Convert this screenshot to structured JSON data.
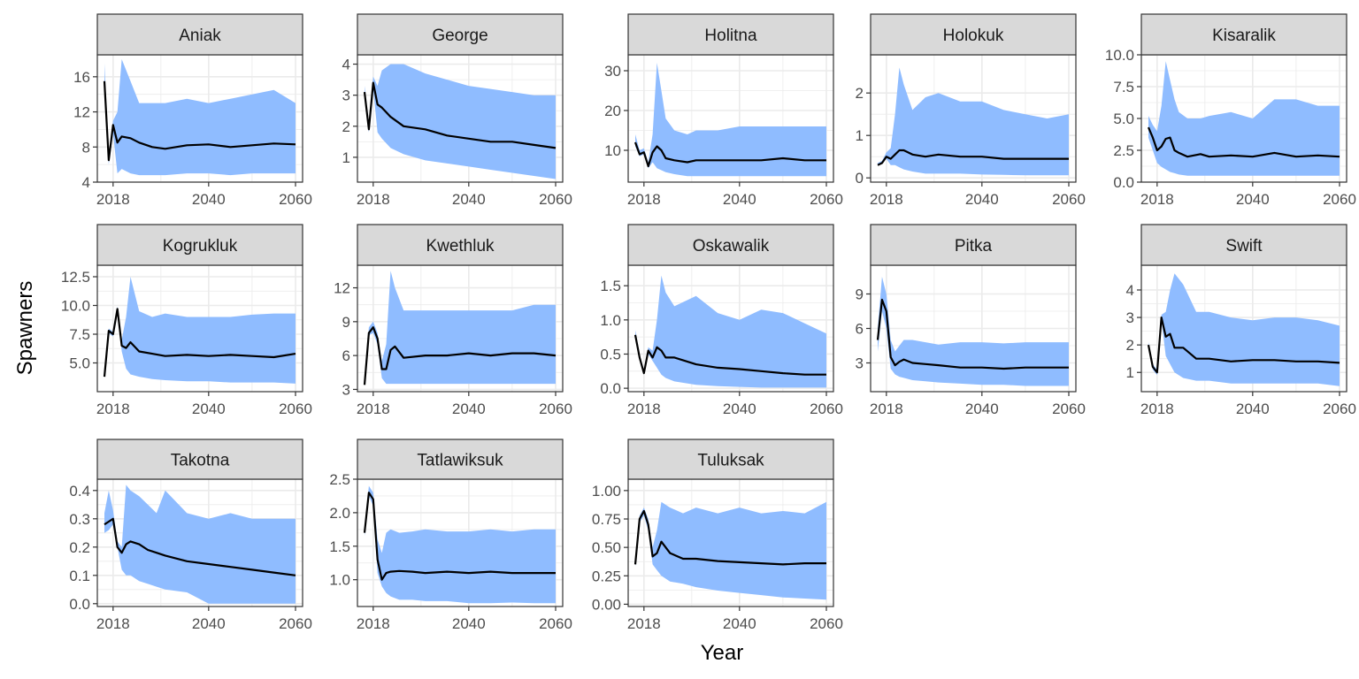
{
  "chart_data": {
    "type": "area",
    "layout": "faceted ribbon + median line, 3 rows x 5 columns, free y scales",
    "xlabel": "Year",
    "ylabel": "Spawners",
    "colors": {
      "ribbon": "#8fbcff",
      "line": "#000000",
      "strip": "#d9d9d9",
      "grid": "#ebebeb"
    },
    "x_ticks": [
      2018,
      2040,
      2060
    ],
    "xlim": [
      2016,
      2060
    ],
    "panels": [
      {
        "name": "Aniak",
        "ylim": [
          4,
          18.5
        ],
        "y_ticks": [
          4,
          8,
          12,
          16
        ],
        "x": [
          2016,
          2017,
          2018,
          2019,
          2020,
          2022,
          2024,
          2027,
          2030,
          2035,
          2040,
          2045,
          2050,
          2055,
          2060
        ],
        "median": [
          15.5,
          6.5,
          10.5,
          8.5,
          9.2,
          9.0,
          8.5,
          8.0,
          7.8,
          8.2,
          8.3,
          8.0,
          8.2,
          8.4,
          8.3
        ],
        "lower": [
          15.0,
          6.0,
          9.5,
          5.0,
          5.5,
          5.0,
          4.8,
          4.8,
          4.8,
          5.0,
          5.0,
          4.8,
          5.0,
          5.0,
          5.0
        ],
        "upper": [
          17.5,
          7.0,
          11.0,
          12.0,
          18.0,
          15.5,
          13.0,
          13.0,
          13.0,
          13.5,
          13.0,
          13.5,
          14.0,
          14.5,
          13.0
        ]
      },
      {
        "name": "George",
        "ylim": [
          0.2,
          4.3
        ],
        "y_ticks": [
          1,
          2,
          3,
          4
        ],
        "x": [
          2016,
          2017,
          2018,
          2019,
          2020,
          2022,
          2025,
          2030,
          2035,
          2040,
          2045,
          2050,
          2055,
          2060
        ],
        "median": [
          3.1,
          1.9,
          3.4,
          2.7,
          2.6,
          2.3,
          2.0,
          1.9,
          1.7,
          1.6,
          1.5,
          1.5,
          1.4,
          1.3
        ],
        "lower": [
          3.0,
          1.8,
          3.2,
          1.8,
          1.6,
          1.3,
          1.1,
          0.9,
          0.8,
          0.7,
          0.6,
          0.5,
          0.4,
          0.3
        ],
        "upper": [
          3.3,
          2.1,
          3.6,
          3.3,
          3.8,
          4.0,
          4.0,
          3.7,
          3.5,
          3.3,
          3.2,
          3.1,
          3.0,
          3.0
        ]
      },
      {
        "name": "Holitna",
        "ylim": [
          2,
          34
        ],
        "y_ticks": [
          10,
          20,
          30
        ],
        "x": [
          2016,
          2017,
          2018,
          2019,
          2020,
          2021,
          2022,
          2023,
          2025,
          2028,
          2030,
          2035,
          2040,
          2045,
          2050,
          2055,
          2060
        ],
        "median": [
          12,
          9,
          9.5,
          6.0,
          9.5,
          11,
          10,
          8.0,
          7.5,
          7.0,
          7.5,
          7.5,
          7.5,
          7.5,
          8.0,
          7.5,
          7.5
        ],
        "lower": [
          11,
          8.5,
          9.0,
          5.5,
          7.0,
          5.5,
          5.0,
          4.5,
          4.0,
          3.5,
          3.5,
          3.5,
          3.5,
          3.5,
          3.5,
          3.5,
          3.5
        ],
        "upper": [
          14,
          10,
          10.5,
          7.0,
          14,
          32,
          25,
          18,
          15,
          14,
          15,
          15,
          16,
          16,
          16,
          16,
          16
        ]
      },
      {
        "name": "Holokuk",
        "ylim": [
          -0.1,
          2.9
        ],
        "y_ticks": [
          0,
          1,
          2
        ],
        "x": [
          2016,
          2017,
          2018,
          2019,
          2020,
          2021,
          2022,
          2024,
          2027,
          2030,
          2035,
          2040,
          2045,
          2050,
          2055,
          2060
        ],
        "median": [
          0.3,
          0.35,
          0.5,
          0.45,
          0.55,
          0.65,
          0.65,
          0.55,
          0.5,
          0.55,
          0.5,
          0.5,
          0.45,
          0.45,
          0.45,
          0.45
        ],
        "lower": [
          0.3,
          0.33,
          0.45,
          0.3,
          0.3,
          0.25,
          0.2,
          0.15,
          0.1,
          0.1,
          0.1,
          0.08,
          0.07,
          0.06,
          0.06,
          0.06
        ],
        "upper": [
          0.35,
          0.4,
          0.6,
          0.7,
          1.5,
          2.6,
          2.2,
          1.6,
          1.9,
          2.0,
          1.8,
          1.8,
          1.6,
          1.5,
          1.4,
          1.5
        ]
      },
      {
        "name": "Kisaralik",
        "ylim": [
          0,
          10
        ],
        "y_ticks": [
          0.0,
          2.5,
          5.0,
          7.5,
          10.0
        ],
        "y_tick_labels": [
          "0.0",
          "2.5",
          "5.0",
          "7.5",
          "10.0"
        ],
        "x": [
          2016,
          2017,
          2018,
          2019,
          2020,
          2021,
          2022,
          2023,
          2025,
          2028,
          2030,
          2035,
          2040,
          2045,
          2050,
          2055,
          2060
        ],
        "median": [
          4.3,
          3.5,
          2.5,
          2.8,
          3.4,
          3.5,
          2.5,
          2.3,
          2.0,
          2.2,
          2.0,
          2.1,
          2.0,
          2.3,
          2.0,
          2.1,
          2.0
        ],
        "lower": [
          3.5,
          2.5,
          1.5,
          1.2,
          1.0,
          0.8,
          0.7,
          0.6,
          0.5,
          0.5,
          0.5,
          0.5,
          0.5,
          0.5,
          0.5,
          0.5,
          0.5
        ],
        "upper": [
          5.2,
          4.5,
          4.0,
          6.0,
          9.5,
          8.0,
          6.5,
          5.5,
          5.0,
          5.0,
          5.2,
          5.5,
          5.0,
          6.5,
          6.5,
          6.0,
          6.0
        ]
      },
      {
        "name": "Kogrukluk",
        "ylim": [
          2.5,
          13.5
        ],
        "y_ticks": [
          5.0,
          7.5,
          10.0,
          12.5
        ],
        "y_tick_labels": [
          "5.0",
          "7.5",
          "10.0",
          "12.5"
        ],
        "x": [
          2016,
          2017,
          2018,
          2019,
          2020,
          2021,
          2022,
          2024,
          2027,
          2030,
          2035,
          2040,
          2045,
          2050,
          2055,
          2060
        ],
        "median": [
          3.8,
          7.8,
          7.5,
          9.7,
          6.5,
          6.3,
          6.8,
          6.0,
          5.8,
          5.6,
          5.7,
          5.6,
          5.7,
          5.6,
          5.5,
          5.8
        ],
        "lower": [
          3.8,
          7.6,
          7.3,
          9.5,
          6.0,
          4.5,
          4.0,
          3.8,
          3.6,
          3.5,
          3.4,
          3.4,
          3.3,
          3.3,
          3.3,
          3.2
        ],
        "upper": [
          3.9,
          8.0,
          7.7,
          9.9,
          7.0,
          9.0,
          12.5,
          9.5,
          9.0,
          9.3,
          9.0,
          9.0,
          9.0,
          9.2,
          9.3,
          9.3
        ]
      },
      {
        "name": "Kwethluk",
        "ylim": [
          2.8,
          14
        ],
        "y_ticks": [
          3,
          6,
          9,
          12
        ],
        "x": [
          2016,
          2017,
          2018,
          2019,
          2020,
          2021,
          2022,
          2023,
          2025,
          2030,
          2035,
          2040,
          2045,
          2050,
          2055,
          2060
        ],
        "median": [
          3.4,
          8.0,
          8.5,
          7.5,
          4.8,
          4.8,
          6.5,
          6.8,
          5.8,
          6.0,
          6.0,
          6.2,
          6.0,
          6.2,
          6.2,
          6.0
        ],
        "lower": [
          3.3,
          7.8,
          8.0,
          7.0,
          4.0,
          3.5,
          3.5,
          3.5,
          3.5,
          3.5,
          3.5,
          3.5,
          3.5,
          3.5,
          3.5,
          3.5
        ],
        "upper": [
          3.5,
          8.5,
          9.0,
          8.0,
          5.5,
          7.0,
          13.5,
          12.0,
          10.0,
          10.0,
          10.0,
          10.0,
          10.0,
          10.0,
          10.5,
          10.5
        ]
      },
      {
        "name": "Oskawalik",
        "ylim": [
          -0.05,
          1.8
        ],
        "y_ticks": [
          0.0,
          0.5,
          1.0,
          1.5
        ],
        "y_tick_labels": [
          "0.0",
          "0.5",
          "1.0",
          "1.5"
        ],
        "x": [
          2016,
          2017,
          2018,
          2019,
          2020,
          2021,
          2022,
          2023,
          2025,
          2030,
          2035,
          2040,
          2045,
          2050,
          2055,
          2060
        ],
        "median": [
          0.78,
          0.45,
          0.22,
          0.55,
          0.45,
          0.6,
          0.55,
          0.45,
          0.45,
          0.35,
          0.3,
          0.28,
          0.25,
          0.22,
          0.2,
          0.2
        ],
        "lower": [
          0.75,
          0.42,
          0.2,
          0.5,
          0.4,
          0.3,
          0.2,
          0.15,
          0.1,
          0.05,
          0.03,
          0.02,
          0.01,
          0.01,
          0.01,
          0.01
        ],
        "upper": [
          0.85,
          0.5,
          0.25,
          0.6,
          0.55,
          1.0,
          1.65,
          1.4,
          1.2,
          1.35,
          1.1,
          1.0,
          1.15,
          1.1,
          0.95,
          0.8
        ]
      },
      {
        "name": "Pitka",
        "ylim": [
          0.5,
          11.5
        ],
        "y_ticks": [
          3,
          6,
          9
        ],
        "x": [
          2016,
          2017,
          2018,
          2019,
          2020,
          2021,
          2022,
          2024,
          2027,
          2030,
          2035,
          2040,
          2045,
          2050,
          2055,
          2060
        ],
        "median": [
          5.0,
          8.5,
          7.5,
          3.5,
          2.8,
          3.1,
          3.3,
          3.0,
          2.9,
          2.8,
          2.6,
          2.6,
          2.5,
          2.6,
          2.6,
          2.6
        ],
        "lower": [
          4.0,
          7.5,
          6.0,
          2.5,
          2.0,
          1.8,
          1.7,
          1.5,
          1.4,
          1.3,
          1.2,
          1.1,
          1.1,
          1.0,
          1.0,
          1.0
        ],
        "upper": [
          6.0,
          10.5,
          9.0,
          5.0,
          4.0,
          4.5,
          5.0,
          5.0,
          4.8,
          4.6,
          4.8,
          4.8,
          4.7,
          4.8,
          4.8,
          4.8
        ]
      },
      {
        "name": "Swift",
        "ylim": [
          0.3,
          4.9
        ],
        "y_ticks": [
          1,
          2,
          3,
          4
        ],
        "x": [
          2016,
          2017,
          2018,
          2019,
          2020,
          2021,
          2022,
          2024,
          2027,
          2030,
          2035,
          2040,
          2045,
          2050,
          2055,
          2060
        ],
        "median": [
          2.0,
          1.2,
          1.0,
          3.0,
          2.3,
          2.4,
          1.9,
          1.9,
          1.5,
          1.5,
          1.4,
          1.45,
          1.45,
          1.4,
          1.4,
          1.35
        ],
        "lower": [
          1.9,
          1.1,
          0.9,
          2.9,
          1.6,
          1.3,
          1.0,
          0.8,
          0.7,
          0.7,
          0.6,
          0.6,
          0.6,
          0.6,
          0.6,
          0.5
        ],
        "upper": [
          2.1,
          1.3,
          1.1,
          3.1,
          3.2,
          4.0,
          4.6,
          4.2,
          3.2,
          3.2,
          3.0,
          2.9,
          3.0,
          3.0,
          2.9,
          2.7
        ]
      },
      {
        "name": "Takotna",
        "ylim": [
          -0.01,
          0.44
        ],
        "y_ticks": [
          0.0,
          0.1,
          0.2,
          0.3,
          0.4
        ],
        "y_tick_labels": [
          "0.0",
          "0.1",
          "0.2",
          "0.3",
          "0.4"
        ],
        "x": [
          2016,
          2017,
          2018,
          2019,
          2020,
          2021,
          2022,
          2024,
          2026,
          2028,
          2030,
          2035,
          2040,
          2045,
          2050,
          2055,
          2060
        ],
        "median": [
          0.28,
          0.29,
          0.3,
          0.2,
          0.18,
          0.21,
          0.22,
          0.21,
          0.19,
          0.18,
          0.17,
          0.15,
          0.14,
          0.13,
          0.12,
          0.11,
          0.1
        ],
        "lower": [
          0.25,
          0.26,
          0.28,
          0.2,
          0.12,
          0.1,
          0.1,
          0.08,
          0.07,
          0.06,
          0.05,
          0.04,
          0.0,
          0.0,
          0.0,
          0.0,
          0.0
        ],
        "upper": [
          0.32,
          0.4,
          0.33,
          0.22,
          0.2,
          0.42,
          0.4,
          0.38,
          0.35,
          0.32,
          0.4,
          0.32,
          0.3,
          0.32,
          0.3,
          0.3,
          0.3
        ]
      },
      {
        "name": "Tatlawiksuk",
        "ylim": [
          0.6,
          2.5
        ],
        "y_ticks": [
          1.0,
          1.5,
          2.0,
          2.5
        ],
        "y_tick_labels": [
          "1.0",
          "1.5",
          "2.0",
          "2.5"
        ],
        "x": [
          2016,
          2017,
          2018,
          2019,
          2020,
          2021,
          2022,
          2024,
          2027,
          2030,
          2035,
          2040,
          2045,
          2050,
          2055,
          2060
        ],
        "median": [
          1.7,
          2.3,
          2.2,
          1.3,
          1.0,
          1.1,
          1.12,
          1.13,
          1.12,
          1.1,
          1.12,
          1.1,
          1.12,
          1.1,
          1.1,
          1.1
        ],
        "lower": [
          1.65,
          2.25,
          2.1,
          1.1,
          0.9,
          0.8,
          0.75,
          0.7,
          0.7,
          0.68,
          0.68,
          0.65,
          0.65,
          0.66,
          0.65,
          0.65
        ],
        "upper": [
          1.75,
          2.4,
          2.3,
          1.6,
          1.4,
          1.7,
          1.75,
          1.7,
          1.72,
          1.75,
          1.72,
          1.72,
          1.75,
          1.72,
          1.75,
          1.75
        ]
      },
      {
        "name": "Tuluksak",
        "ylim": [
          -0.02,
          1.1
        ],
        "y_ticks": [
          0.0,
          0.25,
          0.5,
          0.75,
          1.0
        ],
        "y_tick_labels": [
          "0.00",
          "0.25",
          "0.50",
          "0.75",
          "1.00"
        ],
        "x": [
          2016,
          2017,
          2018,
          2019,
          2020,
          2021,
          2022,
          2024,
          2027,
          2030,
          2035,
          2040,
          2045,
          2050,
          2055,
          2060
        ],
        "median": [
          0.35,
          0.75,
          0.82,
          0.7,
          0.42,
          0.45,
          0.55,
          0.45,
          0.4,
          0.4,
          0.38,
          0.37,
          0.36,
          0.35,
          0.36,
          0.36
        ],
        "lower": [
          0.33,
          0.72,
          0.78,
          0.65,
          0.35,
          0.3,
          0.25,
          0.2,
          0.18,
          0.15,
          0.12,
          0.1,
          0.08,
          0.06,
          0.05,
          0.04
        ],
        "upper": [
          0.37,
          0.78,
          0.85,
          0.75,
          0.5,
          0.65,
          0.9,
          0.85,
          0.8,
          0.85,
          0.8,
          0.85,
          0.8,
          0.82,
          0.8,
          0.9
        ]
      }
    ]
  }
}
